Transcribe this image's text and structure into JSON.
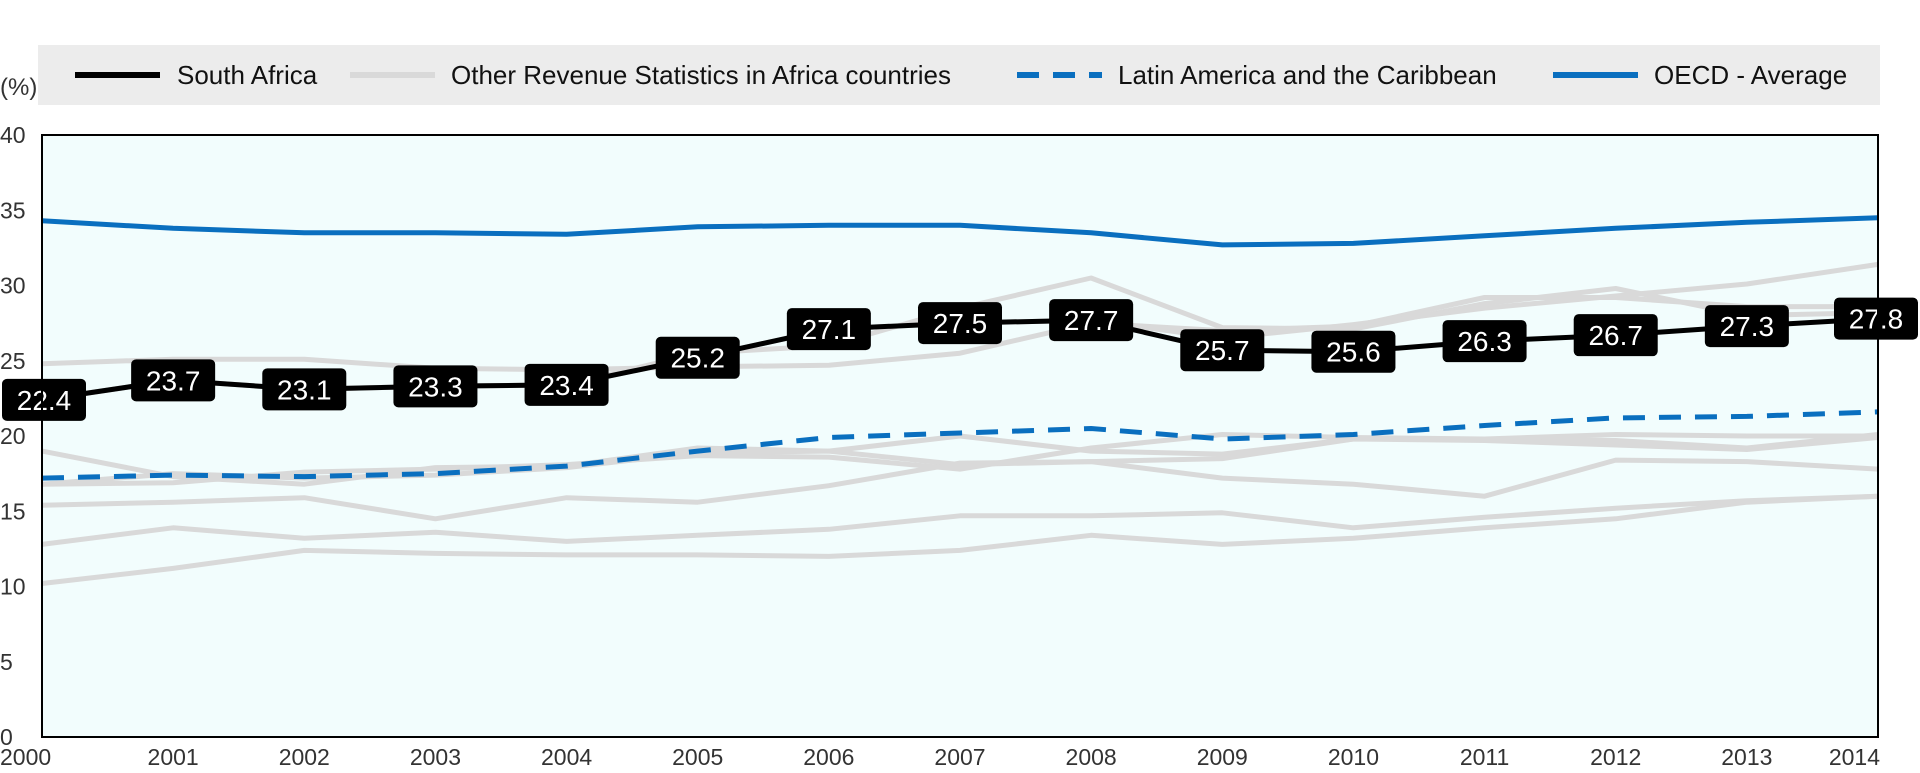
{
  "chart_data": {
    "type": "line",
    "ylabel": "(%)",
    "ylim": [
      0,
      40
    ],
    "yticks": [
      0,
      5,
      10,
      15,
      20,
      25,
      30,
      35,
      40
    ],
    "x": [
      "2000",
      "2001",
      "2002",
      "2003",
      "2004",
      "2005",
      "2006",
      "2007",
      "2008",
      "2009",
      "2010",
      "2011",
      "2012",
      "2013",
      "2014"
    ],
    "legend": {
      "placement": "top",
      "entries": [
        {
          "label": "South Africa",
          "color": "#000000",
          "style": "solid"
        },
        {
          "label": "Other Revenue Statistics in Africa countries",
          "color": "#d9d9d9",
          "style": "solid"
        },
        {
          "label": "Latin America and the Caribbean",
          "color": "#0a6fbf",
          "style": "dashed"
        },
        {
          "label": "OECD - Average",
          "color": "#0a6fbf",
          "style": "solid"
        }
      ]
    },
    "plot_background": "#f2fdfd",
    "series": [
      {
        "name": "Other Revenue Statistics in Africa countries",
        "color": "#d9d9d9",
        "style": "solid",
        "values": [
          24.8,
          25.1,
          25.1,
          24.5,
          24.4,
          24.6,
          24.7,
          25.5,
          27.5,
          27.0,
          27.3,
          29.2,
          29.2,
          28.6,
          28.6
        ]
      },
      {
        "name": "Other Revenue Statistics in Africa countries",
        "color": "#d9d9d9",
        "style": "solid",
        "values": [
          22.4,
          23.7,
          23.1,
          23.3,
          23.4,
          25.5,
          26.0,
          28.5,
          30.5,
          27.2,
          27.1,
          28.8,
          29.8,
          28.0,
          28.2
        ]
      },
      {
        "name": "Other Revenue Statistics in Africa countries",
        "color": "#d9d9d9",
        "style": "solid",
        "values": [
          22.4,
          23.7,
          23.1,
          23.3,
          23.4,
          25.2,
          27.1,
          27.5,
          27.7,
          26.5,
          27.4,
          28.5,
          29.3,
          30.1,
          31.4
        ]
      },
      {
        "name": "Other Revenue Statistics in Africa countries",
        "color": "#d9d9d9",
        "style": "solid",
        "values": [
          19.0,
          17.3,
          16.8,
          17.9,
          18.0,
          19.2,
          19.0,
          18.1,
          18.3,
          17.2,
          16.8,
          16.0,
          18.4,
          18.3,
          17.8
        ]
      },
      {
        "name": "Other Revenue Statistics in Africa countries",
        "color": "#d9d9d9",
        "style": "solid",
        "values": [
          16.8,
          16.9,
          17.6,
          17.8,
          18.1,
          18.7,
          18.6,
          17.8,
          19.2,
          20.1,
          19.9,
          19.8,
          19.7,
          19.2,
          20.1
        ]
      },
      {
        "name": "Other Revenue Statistics in Africa countries",
        "color": "#d9d9d9",
        "style": "solid",
        "values": [
          16.8,
          17.5,
          17.2,
          17.4,
          17.9,
          18.9,
          19.0,
          20.0,
          19.0,
          18.8,
          19.8,
          19.8,
          20.1,
          20.0,
          20.0
        ]
      },
      {
        "name": "Other Revenue Statistics in Africa countries",
        "color": "#d9d9d9",
        "style": "solid",
        "values": [
          15.4,
          15.6,
          15.9,
          14.5,
          15.9,
          15.6,
          16.7,
          18.2,
          18.3,
          18.5,
          19.8,
          19.7,
          19.4,
          19.1,
          19.9
        ]
      },
      {
        "name": "Other Revenue Statistics in Africa countries",
        "color": "#d9d9d9",
        "style": "solid",
        "values": [
          12.8,
          13.9,
          13.2,
          13.6,
          13.0,
          13.4,
          13.8,
          14.7,
          14.7,
          14.9,
          13.9,
          14.6,
          15.2,
          15.7,
          16.0
        ]
      },
      {
        "name": "Other Revenue Statistics in Africa countries",
        "color": "#d9d9d9",
        "style": "solid",
        "values": [
          10.2,
          11.2,
          12.4,
          12.2,
          12.1,
          12.1,
          12.0,
          12.4,
          13.4,
          12.8,
          13.2,
          13.9,
          14.5,
          15.6,
          16.0
        ]
      },
      {
        "name": "Latin America and the Caribbean",
        "color": "#0a6fbf",
        "style": "dashed",
        "values": [
          17.2,
          17.4,
          17.3,
          17.5,
          18.0,
          19.0,
          19.9,
          20.2,
          20.5,
          19.8,
          20.1,
          20.7,
          21.2,
          21.3,
          21.6
        ]
      },
      {
        "name": "OECD - Average",
        "color": "#0a6fbf",
        "style": "solid",
        "values": [
          34.3,
          33.8,
          33.5,
          33.5,
          33.4,
          33.9,
          34.0,
          34.0,
          33.5,
          32.7,
          32.8,
          33.3,
          33.8,
          34.2,
          34.5
        ]
      },
      {
        "name": "South Africa",
        "color": "#000000",
        "style": "solid",
        "values": [
          22.4,
          23.7,
          23.1,
          23.3,
          23.4,
          25.2,
          27.1,
          27.5,
          27.7,
          25.7,
          25.6,
          26.3,
          26.7,
          27.3,
          27.8
        ],
        "labels": [
          "22.4",
          "23.7",
          "23.1",
          "23.3",
          "23.4",
          "25.2",
          "27.1",
          "27.5",
          "27.7",
          "25.7",
          "25.6",
          "26.3",
          "26.7",
          "27.3",
          "27.8"
        ]
      }
    ]
  }
}
